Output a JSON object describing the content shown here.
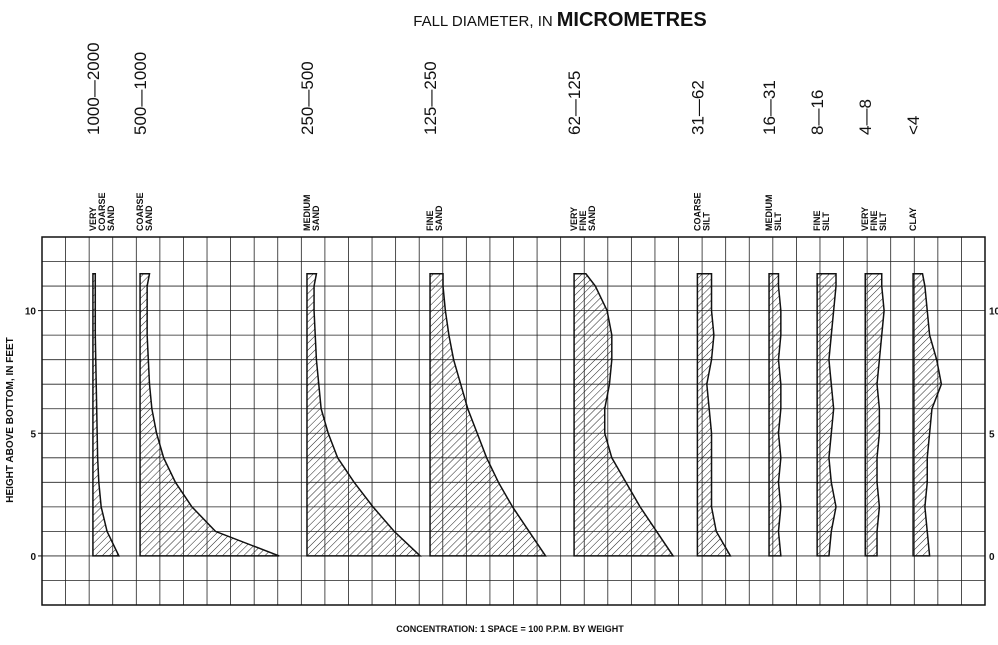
{
  "chart_data": {
    "type": "profile",
    "title_parts": [
      "FALL DIAMETER, IN",
      "MICROMETRES"
    ],
    "xlabel": "CONCENTRATION: 1 SPACE = 100 P.P.M. BY WEIGHT",
    "ylabel": "HEIGHT ABOVE BOTTOM, IN FEET",
    "xlim": [
      0,
      40
    ],
    "ylim": [
      -2,
      13
    ],
    "yticks": [
      0,
      5,
      10
    ],
    "xgrid": [
      0,
      1,
      2,
      3,
      4,
      5,
      6,
      7,
      8,
      9,
      10,
      11,
      12,
      13,
      14,
      15,
      16,
      17,
      18,
      19,
      20,
      21,
      22,
      23,
      24,
      25,
      26,
      27,
      28,
      29,
      30,
      31,
      32,
      33,
      34,
      35,
      36,
      37,
      38,
      39,
      40
    ],
    "ygrid": [
      -2,
      -1,
      0,
      1,
      2,
      3,
      4,
      5,
      6,
      7,
      8,
      9,
      10,
      11,
      12,
      13
    ],
    "heights": [
      0,
      1,
      2,
      3,
      4,
      5,
      6,
      7,
      8,
      9,
      10,
      11,
      11.5
    ],
    "series": [
      {
        "size": "1000—2000",
        "name": [
          "VERY",
          "COARSE",
          "SAND"
        ],
        "baseline": 2.16,
        "values": [
          1.1,
          0.6,
          0.35,
          0.25,
          0.2,
          0.18,
          0.16,
          0.14,
          0.12,
          0.1,
          0.1,
          0.1,
          0.1
        ]
      },
      {
        "size": "500—1000",
        "name": [
          "COARSE",
          "SAND"
        ],
        "baseline": 4.16,
        "values": [
          5.9,
          3.2,
          2.2,
          1.5,
          1.0,
          0.7,
          0.5,
          0.4,
          0.35,
          0.3,
          0.3,
          0.3,
          0.4
        ]
      },
      {
        "size": "250—500",
        "name": [
          "MEDIUM",
          "SAND"
        ],
        "baseline": 11.24,
        "values": [
          4.8,
          3.7,
          2.8,
          2.0,
          1.3,
          0.9,
          0.6,
          0.5,
          0.4,
          0.35,
          0.3,
          0.3,
          0.4
        ]
      },
      {
        "size": "125—250",
        "name": [
          "FINE",
          "SAND"
        ],
        "baseline": 16.46,
        "values": [
          4.9,
          4.2,
          3.5,
          2.9,
          2.4,
          2.0,
          1.6,
          1.3,
          1.0,
          0.8,
          0.65,
          0.55,
          0.55
        ]
      },
      {
        "size": "62—125",
        "name": [
          "VERY",
          "FINE",
          "SAND"
        ],
        "baseline": 22.57,
        "values": [
          4.2,
          3.5,
          2.8,
          2.2,
          1.6,
          1.3,
          1.3,
          1.5,
          1.6,
          1.6,
          1.4,
          0.9,
          0.5
        ]
      },
      {
        "size": "31—62",
        "name": [
          "COARSE",
          "SILT"
        ],
        "baseline": 27.8,
        "values": [
          1.4,
          0.8,
          0.6,
          0.6,
          0.6,
          0.6,
          0.5,
          0.4,
          0.6,
          0.7,
          0.6,
          0.6,
          0.6
        ]
      },
      {
        "size": "16—31",
        "name": [
          "MEDIUM",
          "SILT"
        ],
        "baseline": 30.84,
        "values": [
          0.5,
          0.4,
          0.5,
          0.4,
          0.5,
          0.4,
          0.5,
          0.5,
          0.4,
          0.5,
          0.5,
          0.4,
          0.4
        ]
      },
      {
        "size": "8—16",
        "name": [
          "FINE",
          "SILT"
        ],
        "baseline": 32.88,
        "values": [
          0.5,
          0.6,
          0.8,
          0.6,
          0.5,
          0.6,
          0.7,
          0.6,
          0.5,
          0.6,
          0.7,
          0.8,
          0.8
        ]
      },
      {
        "size": "4—8",
        "name": [
          "VERY",
          "FINE",
          "SILT"
        ],
        "baseline": 34.92,
        "values": [
          0.5,
          0.5,
          0.6,
          0.5,
          0.5,
          0.6,
          0.6,
          0.5,
          0.6,
          0.7,
          0.8,
          0.7,
          0.7
        ]
      },
      {
        "size": "<4",
        "name": [
          "CLAY"
        ],
        "baseline": 36.95,
        "values": [
          0.7,
          0.6,
          0.5,
          0.6,
          0.6,
          0.7,
          0.8,
          1.2,
          1.0,
          0.7,
          0.6,
          0.5,
          0.4
        ]
      }
    ]
  }
}
